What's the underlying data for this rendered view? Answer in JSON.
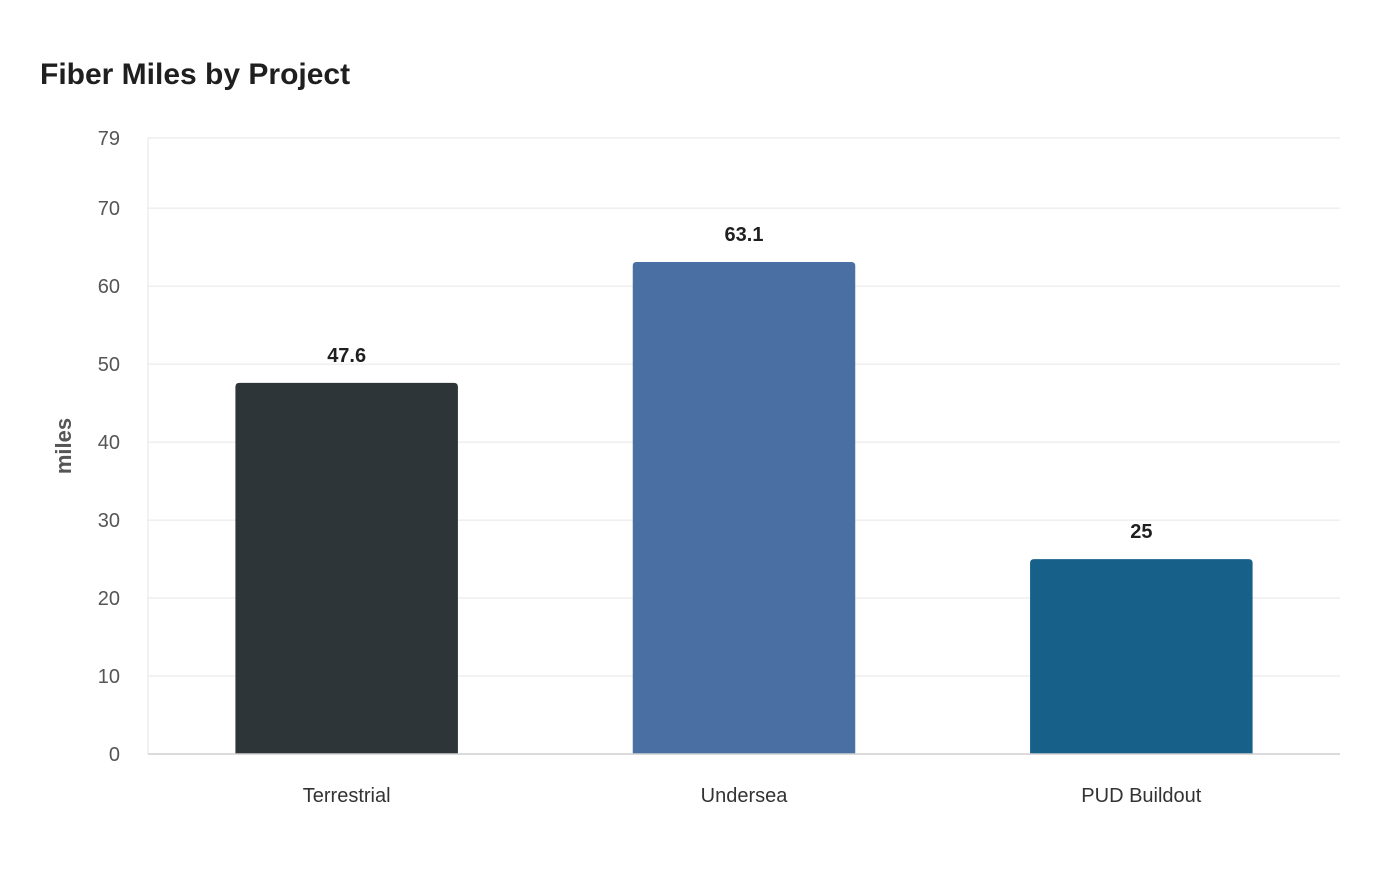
{
  "chart_data": {
    "type": "bar",
    "title": "Fiber Miles by Project",
    "xlabel": "",
    "ylabel": "miles",
    "ylim": [
      0,
      79
    ],
    "yticks": [
      0,
      10,
      20,
      30,
      40,
      50,
      60,
      70,
      79
    ],
    "grid": true,
    "categories": [
      "Terrestrial",
      "Undersea",
      "PUD Buildout"
    ],
    "values": [
      47.6,
      63.1,
      25
    ],
    "value_labels": [
      "47.6",
      "63.1",
      "25"
    ],
    "colors": [
      "#2e3538",
      "#4a6fa3",
      "#17608a"
    ]
  }
}
